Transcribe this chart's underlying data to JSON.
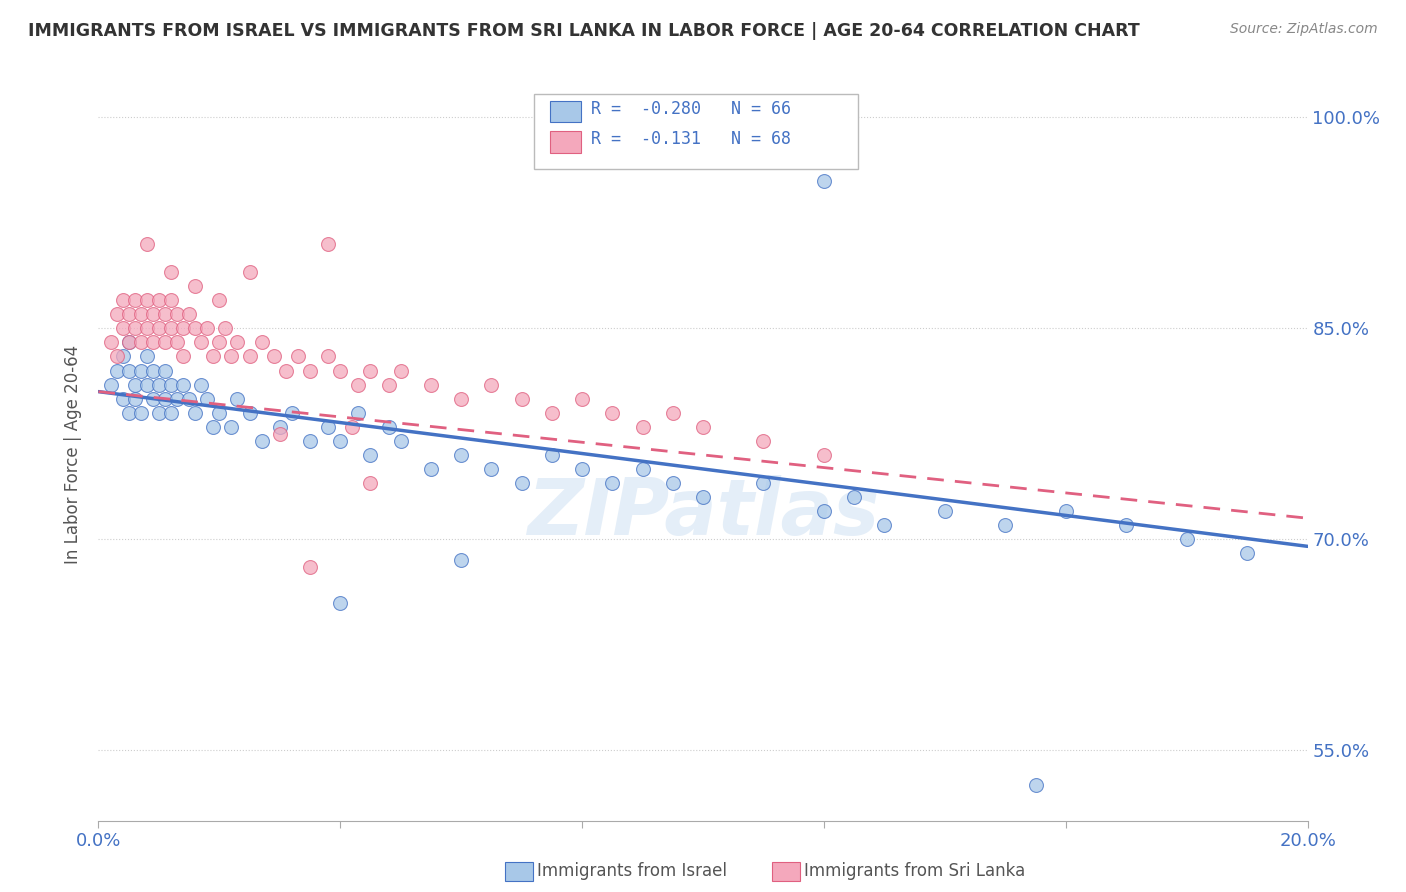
{
  "title": "IMMIGRANTS FROM ISRAEL VS IMMIGRANTS FROM SRI LANKA IN LABOR FORCE | AGE 20-64 CORRELATION CHART",
  "source": "Source: ZipAtlas.com",
  "ylabel": "In Labor Force | Age 20-64",
  "legend_label1": "Immigrants from Israel",
  "legend_label2": "Immigrants from Sri Lanka",
  "R1": -0.28,
  "N1": 66,
  "R2": -0.131,
  "N2": 68,
  "xlim": [
    0.0,
    0.2
  ],
  "ylim": [
    0.5,
    1.02
  ],
  "yticks": [
    0.55,
    0.7,
    0.85,
    1.0
  ],
  "ytick_labels": [
    "55.0%",
    "70.0%",
    "85.0%",
    "100.0%"
  ],
  "color_israel": "#a8c8e8",
  "color_srilanka": "#f4a8bc",
  "line_color_israel": "#4472c4",
  "line_color_srilanka": "#e06080",
  "bg_color": "#ffffff",
  "watermark": "ZIPatlas",
  "israel_x": [
    0.002,
    0.003,
    0.004,
    0.004,
    0.005,
    0.005,
    0.005,
    0.006,
    0.006,
    0.007,
    0.007,
    0.008,
    0.008,
    0.009,
    0.009,
    0.01,
    0.01,
    0.011,
    0.011,
    0.012,
    0.012,
    0.013,
    0.014,
    0.015,
    0.016,
    0.017,
    0.018,
    0.019,
    0.02,
    0.022,
    0.023,
    0.025,
    0.027,
    0.03,
    0.032,
    0.035,
    0.038,
    0.04,
    0.043,
    0.045,
    0.048,
    0.05,
    0.055,
    0.06,
    0.065,
    0.07,
    0.075,
    0.08,
    0.085,
    0.09,
    0.095,
    0.1,
    0.11,
    0.12,
    0.125,
    0.13,
    0.14,
    0.15,
    0.16,
    0.17,
    0.18,
    0.19,
    0.12,
    0.155,
    0.04,
    0.06
  ],
  "israel_y": [
    0.81,
    0.82,
    0.8,
    0.83,
    0.79,
    0.82,
    0.84,
    0.81,
    0.8,
    0.82,
    0.79,
    0.81,
    0.83,
    0.8,
    0.82,
    0.81,
    0.79,
    0.82,
    0.8,
    0.81,
    0.79,
    0.8,
    0.81,
    0.8,
    0.79,
    0.81,
    0.8,
    0.78,
    0.79,
    0.78,
    0.8,
    0.79,
    0.77,
    0.78,
    0.79,
    0.77,
    0.78,
    0.77,
    0.79,
    0.76,
    0.78,
    0.77,
    0.75,
    0.76,
    0.75,
    0.74,
    0.76,
    0.75,
    0.74,
    0.75,
    0.74,
    0.73,
    0.74,
    0.72,
    0.73,
    0.71,
    0.72,
    0.71,
    0.72,
    0.71,
    0.7,
    0.69,
    0.955,
    0.525,
    0.655,
    0.685
  ],
  "srilanka_x": [
    0.002,
    0.003,
    0.003,
    0.004,
    0.004,
    0.005,
    0.005,
    0.006,
    0.006,
    0.007,
    0.007,
    0.008,
    0.008,
    0.009,
    0.009,
    0.01,
    0.01,
    0.011,
    0.011,
    0.012,
    0.012,
    0.013,
    0.013,
    0.014,
    0.014,
    0.015,
    0.016,
    0.017,
    0.018,
    0.019,
    0.02,
    0.021,
    0.022,
    0.023,
    0.025,
    0.027,
    0.029,
    0.031,
    0.033,
    0.035,
    0.038,
    0.04,
    0.043,
    0.045,
    0.048,
    0.05,
    0.055,
    0.06,
    0.065,
    0.07,
    0.075,
    0.08,
    0.085,
    0.09,
    0.095,
    0.1,
    0.11,
    0.12,
    0.03,
    0.045,
    0.008,
    0.012,
    0.016,
    0.02,
    0.025,
    0.035,
    0.038,
    0.042
  ],
  "srilanka_y": [
    0.84,
    0.86,
    0.83,
    0.85,
    0.87,
    0.86,
    0.84,
    0.87,
    0.85,
    0.86,
    0.84,
    0.87,
    0.85,
    0.86,
    0.84,
    0.87,
    0.85,
    0.86,
    0.84,
    0.87,
    0.85,
    0.86,
    0.84,
    0.85,
    0.83,
    0.86,
    0.85,
    0.84,
    0.85,
    0.83,
    0.84,
    0.85,
    0.83,
    0.84,
    0.83,
    0.84,
    0.83,
    0.82,
    0.83,
    0.82,
    0.83,
    0.82,
    0.81,
    0.82,
    0.81,
    0.82,
    0.81,
    0.8,
    0.81,
    0.8,
    0.79,
    0.8,
    0.79,
    0.78,
    0.79,
    0.78,
    0.77,
    0.76,
    0.775,
    0.74,
    0.91,
    0.89,
    0.88,
    0.87,
    0.89,
    0.68,
    0.91,
    0.78
  ],
  "israel_trend_x": [
    0.0,
    0.2
  ],
  "israel_trend_y": [
    0.805,
    0.695
  ],
  "srilanka_trend_x": [
    0.0,
    0.2
  ],
  "srilanka_trend_y": [
    0.805,
    0.715
  ]
}
